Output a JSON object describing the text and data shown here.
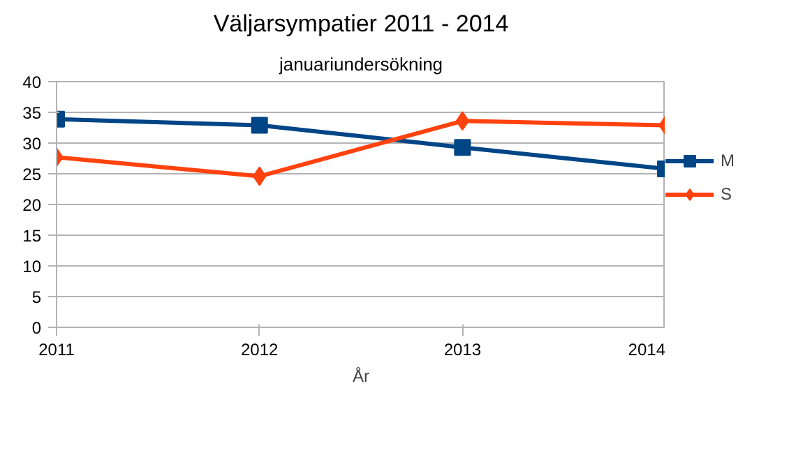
{
  "chart_data": {
    "type": "line",
    "title": "Väljarsympatier 2011 - 2014",
    "subtitle": "januariundersökning",
    "xlabel": "År",
    "categories": [
      "2011",
      "2012",
      "2013",
      "2014"
    ],
    "series": [
      {
        "name": "M",
        "color": "#004586",
        "marker": "square",
        "values": [
          33.9,
          32.9,
          29.3,
          25.8
        ]
      },
      {
        "name": "S",
        "color": "#ff420e",
        "marker": "diamond",
        "values": [
          27.7,
          24.6,
          33.6,
          32.9
        ]
      }
    ],
    "ylim": [
      0,
      40
    ],
    "yticks": [
      0,
      5,
      10,
      15,
      20,
      25,
      30,
      35,
      40
    ],
    "grid": "y",
    "legend": "right",
    "line_style": "solid"
  }
}
